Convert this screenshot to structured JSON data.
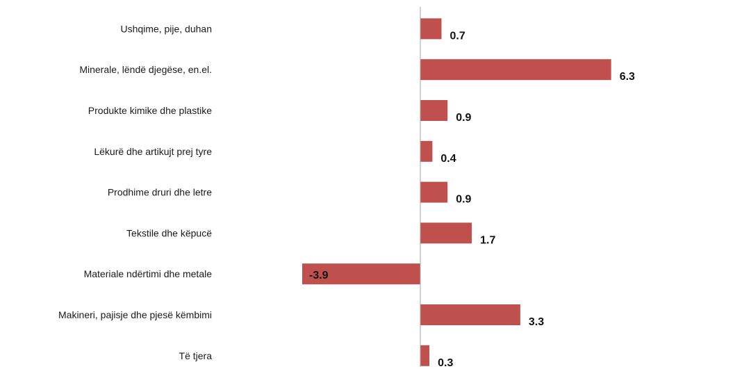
{
  "chart_data": {
    "type": "bar",
    "orientation": "horizontal",
    "title": "",
    "xlabel": "",
    "ylabel": "",
    "categories": [
      "Ushqime, pije, duhan",
      "Minerale, lëndë djegëse, en.el.",
      "Produkte kimike dhe plastike",
      "Lëkurë dhe artikujt prej tyre",
      "Prodhime druri dhe letre",
      "Tekstile dhe këpucë",
      "Materiale ndërtimi dhe metale",
      "Makineri, pajisje dhe pjesë këmbimi",
      "Të tjera"
    ],
    "values": [
      0.7,
      6.3,
      0.9,
      0.4,
      0.9,
      1.7,
      -3.9,
      3.3,
      0.3
    ],
    "value_labels": [
      "0.7",
      "6.3",
      "0.9",
      "0.4",
      "0.9",
      "1.7",
      "-3.9",
      "3.3",
      "0.3"
    ],
    "xlim": [
      -3.9,
      6.3
    ],
    "grid": false,
    "legend": "none",
    "bar_color": "#c0504d",
    "axis_color": "#a6a6a6"
  }
}
